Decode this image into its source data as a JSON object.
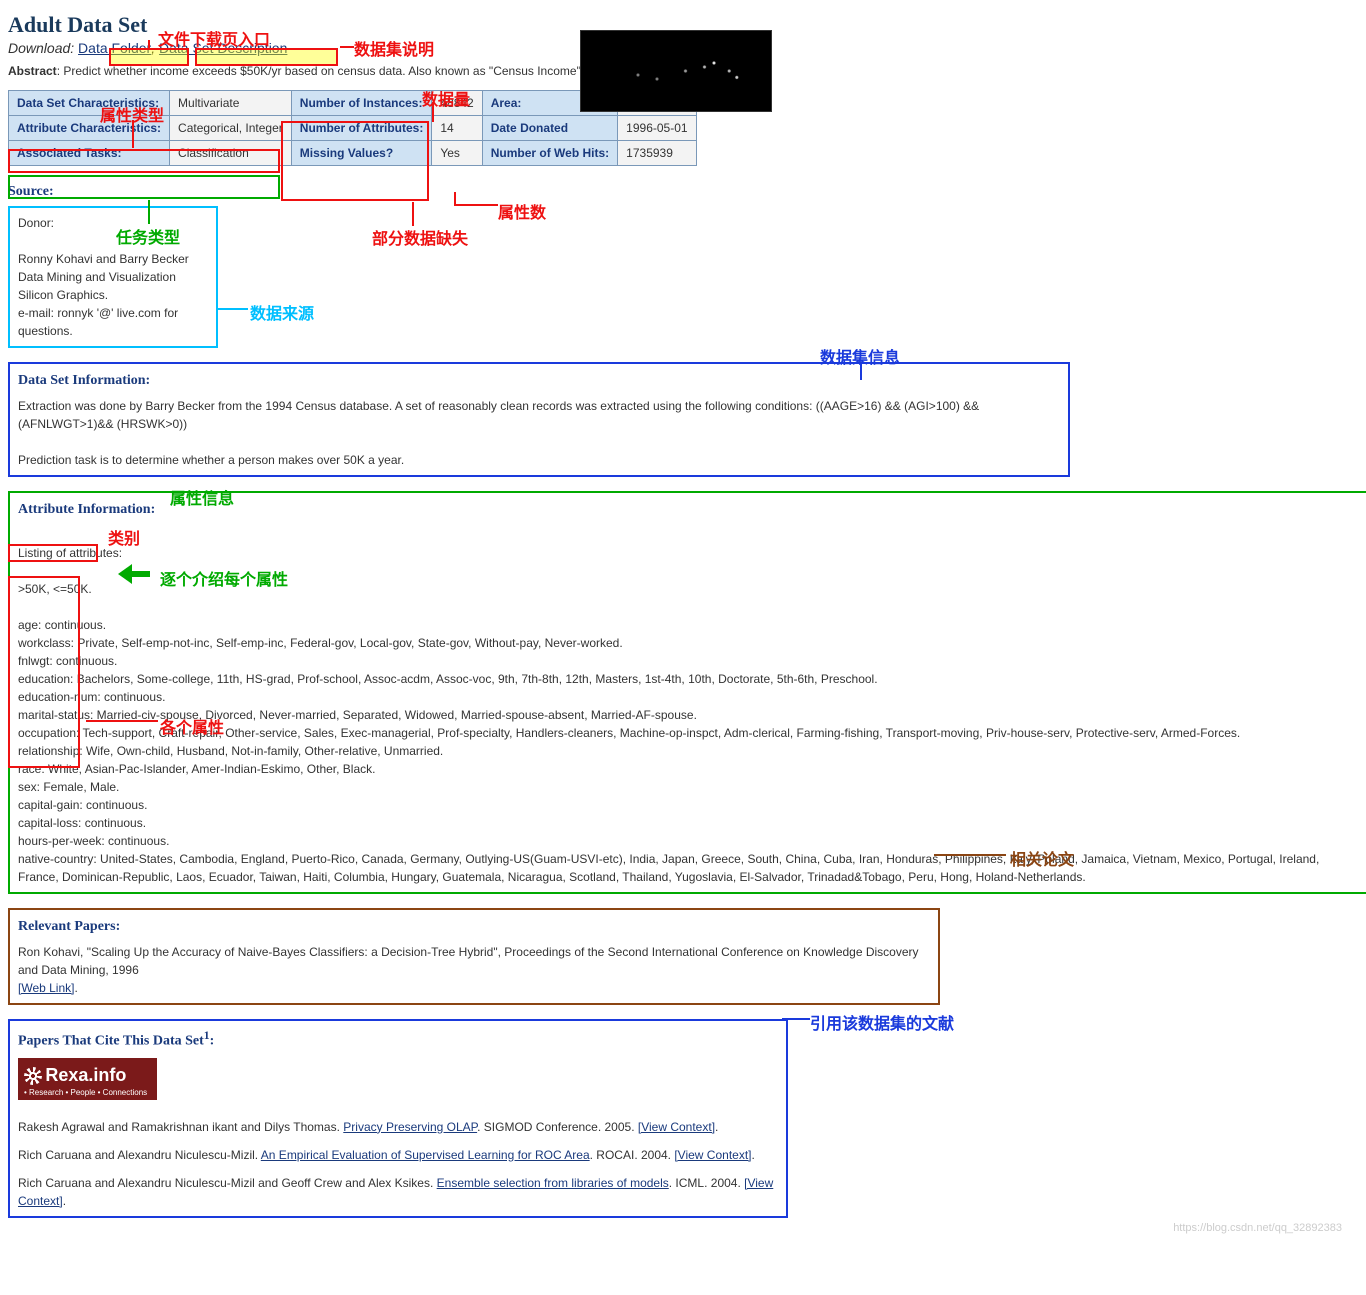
{
  "title": "Adult Data Set",
  "download_label": "Download",
  "links": {
    "data_folder": "Data Folder",
    "desc": "Data Set Description"
  },
  "abstract_label": "Abstract",
  "abstract_text": ": Predict whether income exceeds $50K/yr based on census data. Also known as \"Census Income\" dataset.",
  "meta": {
    "r1": {
      "h1": "Data Set Characteristics:",
      "v1": "Multivariate",
      "h2": "Number of Instances:",
      "v2": "48842",
      "h3": "Area:",
      "v3": "Social"
    },
    "r2": {
      "h1": "Attribute Characteristics:",
      "v1": "Categorical, Integer",
      "h2": "Number of Attributes:",
      "v2": "14",
      "h3": "Date Donated",
      "v3": "1996-05-01"
    },
    "r3": {
      "h1": "Associated Tasks:",
      "v1": "Classification",
      "h2": "Missing Values?",
      "v2": "Yes",
      "h3": "Number of Web Hits:",
      "v3": "1735939"
    }
  },
  "source_head": "Source:",
  "source_box": {
    "l1": "Donor:",
    "l2": "Ronny Kohavi and Barry Becker",
    "l3": "Data Mining and Visualization",
    "l4": "Silicon Graphics.",
    "l5": "e-mail: ronnyk '@' live.com for questions."
  },
  "dsi_head": "Data Set Information:",
  "dsi_p1": "Extraction was done by Barry Becker from the 1994 Census database. A set of reasonably clean records was extracted using the following conditions: ((AAGE>16) && (AGI>100) && (AFNLWGT>1)&& (HRSWK>0))",
  "dsi_p2": "Prediction task is to determine whether a person makes over 50K a year.",
  "attr_head": "Attribute Information:",
  "attr_listing": "Listing of attributes:",
  "attr_classes": ">50K, <=50K.",
  "attrs": [
    "age: continuous.",
    "workclass: Private, Self-emp-not-inc, Self-emp-inc, Federal-gov, Local-gov, State-gov, Without-pay, Never-worked.",
    "fnlwgt: continuous.",
    "education: Bachelors, Some-college, 11th, HS-grad, Prof-school, Assoc-acdm, Assoc-voc, 9th, 7th-8th, 12th, Masters, 1st-4th, 10th, Doctorate, 5th-6th, Preschool.",
    "education-num: continuous.",
    "marital-status: Married-civ-spouse, Divorced, Never-married, Separated, Widowed, Married-spouse-absent, Married-AF-spouse.",
    "occupation: Tech-support, Craft-repair, Other-service, Sales, Exec-managerial, Prof-specialty, Handlers-cleaners, Machine-op-inspct, Adm-clerical, Farming-fishing, Transport-moving, Priv-house-serv, Protective-serv, Armed-Forces.",
    "relationship: Wife, Own-child, Husband, Not-in-family, Other-relative, Unmarried.",
    "race: White, Asian-Pac-Islander, Amer-Indian-Eskimo, Other, Black.",
    "sex: Female, Male.",
    "capital-gain: continuous.",
    "capital-loss: continuous.",
    "hours-per-week: continuous.",
    "native-country: United-States, Cambodia, England, Puerto-Rico, Canada, Germany, Outlying-US(Guam-USVI-etc), India, Japan, Greece, South, China, Cuba, Iran, Honduras, Philippines, Italy, Poland, Jamaica, Vietnam, Mexico, Portugal, Ireland, France, Dominican-Republic, Laos, Ecuador, Taiwan, Haiti, Columbia, Hungary, Guatemala, Nicaragua, Scotland, Thailand, Yugoslavia, El-Salvador, Trinadad&Tobago, Peru, Hong, Holand-Netherlands."
  ],
  "papers_head": "Relevant Papers:",
  "papers_p1": "Ron Kohavi, \"Scaling Up the Accuracy of Naive-Bayes Classifiers: a Decision-Tree Hybrid\", Proceedings of the Second International Conference on Knowledge Discovery and Data Mining, 1996",
  "weblink": "[Web Link]",
  "cite_head": "Papers That Cite This Data Set",
  "rexa_big": "Rexa.info",
  "rexa_sub": "• Research • People • Connections",
  "cites": [
    {
      "authors": "Rakesh Agrawal and Ramakrishnan ikant and Dilys Thomas. ",
      "title": "Privacy Preserving OLAP",
      "tail": ". SIGMOD Conference. 2005. ",
      "ctx": "[View Context]"
    },
    {
      "authors": "Rich Caruana and Alexandru Niculescu-Mizil. ",
      "title": "An Empirical Evaluation of Supervised Learning for ROC Area",
      "tail": ". ROCAI. 2004. ",
      "ctx": "[View Context]"
    },
    {
      "authors": "Rich Caruana and Alexandru Niculescu-Mizil and Geoff Crew and Alex Ksikes. ",
      "title": "Ensemble selection from libraries of models",
      "tail": ". ICML. 2004. ",
      "ctx": "[View Context]"
    }
  ],
  "annos": {
    "dl_entry": "文件下载页入口",
    "ds_desc": "数据集说明",
    "attr_type": "属性类型",
    "data_qty": "数据量",
    "attr_cnt": "属性数",
    "missing": "部分数据缺失",
    "task_type": "任务类型",
    "source": "数据来源",
    "dsi": "数据集信息",
    "attr_info": "属性信息",
    "classes": "类别",
    "each_attr": "逐个介绍每个属性",
    "each_prop": "各个属性",
    "rel_papers": "相关论文",
    "cite_lit": "引用该数据集的文献"
  },
  "colors": {
    "red": "#e11",
    "green": "#0a0",
    "cyan": "#00bfff",
    "blue": "#1a3adc",
    "brown": "#8b4513"
  },
  "watermark": "https://blog.csdn.net/qq_32892383"
}
